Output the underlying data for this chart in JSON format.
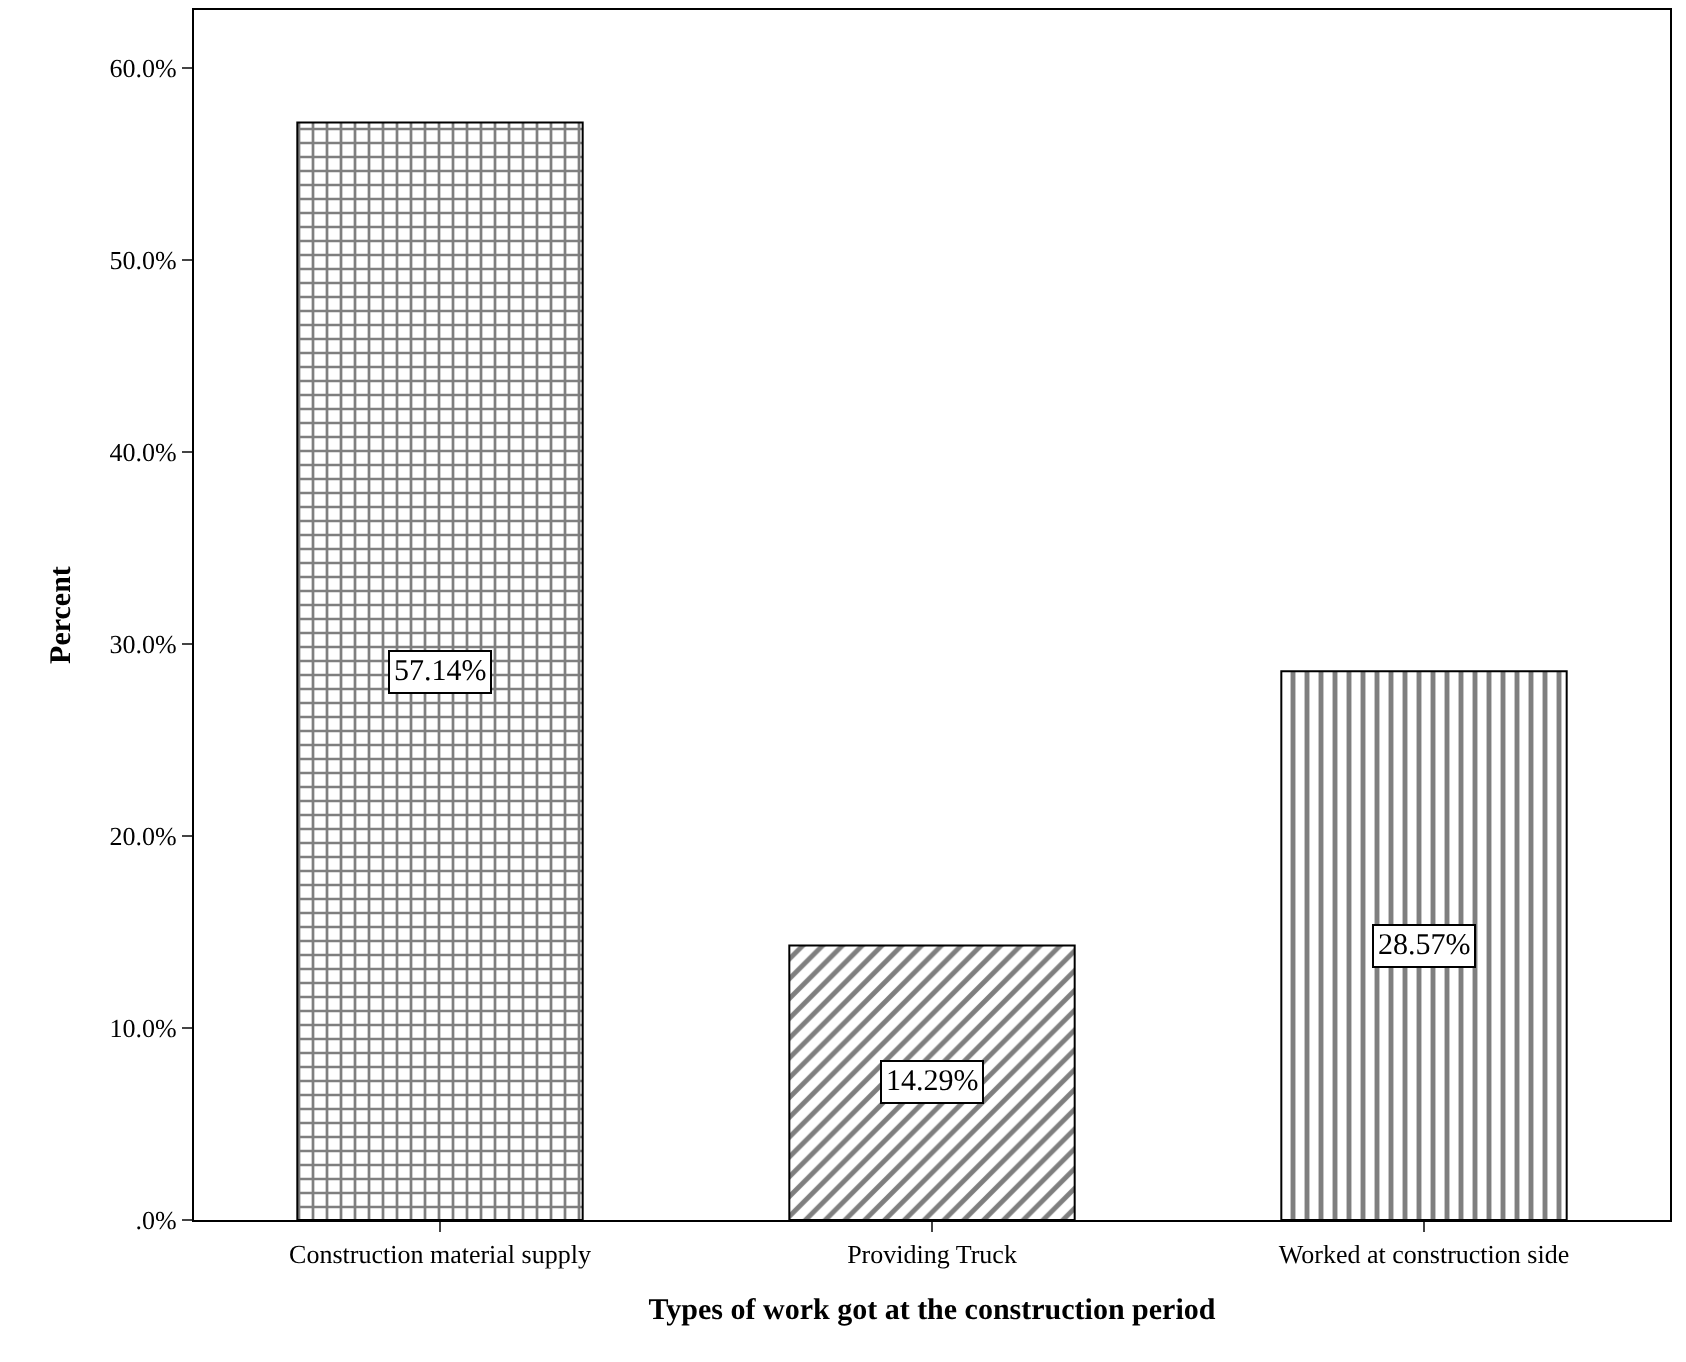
{
  "chart_data": {
    "type": "bar",
    "xlabel": "Types of work got at the construction period",
    "ylabel": "Percent",
    "categories": [
      "Construction material supply",
      "Providing Truck",
      "Worked at construction side"
    ],
    "values": [
      57.14,
      14.29,
      28.57
    ],
    "value_labels": [
      "57.14%",
      "14.29%",
      "28.57%"
    ],
    "color": "#000000",
    "ylim": [
      0,
      63
    ],
    "yticks": [
      {
        "value": 0,
        "label": ".0%"
      },
      {
        "value": 10,
        "label": "10.0%"
      },
      {
        "value": 20,
        "label": "20.0%"
      },
      {
        "value": 30,
        "label": "30.0%"
      },
      {
        "value": 40,
        "label": "40.0%"
      },
      {
        "value": 50,
        "label": "50.0%"
      },
      {
        "value": 60,
        "label": "60.0%"
      }
    ]
  }
}
